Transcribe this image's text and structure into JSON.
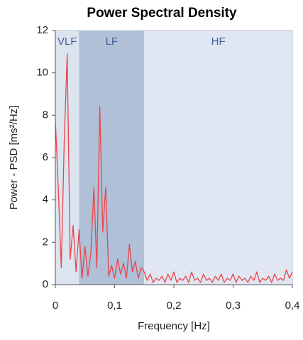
{
  "chart_data": {
    "type": "line",
    "title": "Power Spectral Density",
    "x_label": "Frequency [Hz]",
    "y_label": "Power - PSD [ms²/Hz]",
    "xlim": [
      0,
      0.4
    ],
    "ylim": [
      0,
      12
    ],
    "xticks": [
      0,
      {
        "value": 0.1,
        "label": "0,1"
      },
      {
        "value": 0.2,
        "label": "0,2"
      },
      {
        "value": 0.3,
        "label": "0,3"
      },
      {
        "value": 0.4,
        "label": "0,4"
      }
    ],
    "yticks": [
      0,
      2,
      4,
      6,
      8,
      10,
      12
    ],
    "bands": [
      {
        "name": "VLF",
        "range": [
          0,
          0.04
        ],
        "color": "#dce4f0"
      },
      {
        "name": "LF",
        "range": [
          0.04,
          0.15
        ],
        "color": "#afc0d7"
      },
      {
        "name": "HF",
        "range": [
          0.15,
          0.4
        ],
        "color": "#e1e7f2"
      }
    ],
    "color": "#e8454a",
    "x": [
      0,
      0.005,
      0.01,
      0.015,
      0.02,
      0.025,
      0.03,
      0.035,
      0.04,
      0.045,
      0.05,
      0.055,
      0.06,
      0.065,
      0.07,
      0.075,
      0.08,
      0.085,
      0.09,
      0.095,
      0.1,
      0.105,
      0.11,
      0.115,
      0.12,
      0.125,
      0.13,
      0.135,
      0.14,
      0.145,
      0.15,
      0.155,
      0.16,
      0.165,
      0.17,
      0.175,
      0.18,
      0.185,
      0.19,
      0.195,
      0.2,
      0.205,
      0.21,
      0.215,
      0.22,
      0.225,
      0.23,
      0.235,
      0.24,
      0.245,
      0.25,
      0.255,
      0.26,
      0.265,
      0.27,
      0.275,
      0.28,
      0.285,
      0.29,
      0.295,
      0.3,
      0.305,
      0.31,
      0.315,
      0.32,
      0.325,
      0.33,
      0.335,
      0.34,
      0.345,
      0.35,
      0.355,
      0.36,
      0.365,
      0.37,
      0.375,
      0.38,
      0.385,
      0.39,
      0.395,
      0.4
    ],
    "values": [
      7.8,
      4.5,
      0.8,
      6.8,
      10.9,
      1.2,
      2.8,
      0.6,
      2.6,
      0.3,
      1.8,
      0.4,
      1.5,
      4.6,
      0.8,
      8.4,
      2.5,
      4.6,
      0.4,
      0.9,
      0.3,
      1.2,
      0.5,
      1.0,
      0.3,
      1.9,
      0.6,
      1.1,
      0.3,
      0.8,
      0.6,
      0.2,
      0.5,
      0.1,
      0.3,
      0.2,
      0.4,
      0.1,
      0.5,
      0.2,
      0.6,
      0.1,
      0.3,
      0.2,
      0.4,
      0.1,
      0.6,
      0.2,
      0.3,
      0.1,
      0.5,
      0.2,
      0.3,
      0.1,
      0.4,
      0.2,
      0.5,
      0.1,
      0.3,
      0.2,
      0.5,
      0.1,
      0.4,
      0.2,
      0.3,
      0.1,
      0.4,
      0.2,
      0.6,
      0.1,
      0.3,
      0.2,
      0.4,
      0.1,
      0.5,
      0.2,
      0.3,
      0.2,
      0.7,
      0.3,
      0.6
    ]
  }
}
